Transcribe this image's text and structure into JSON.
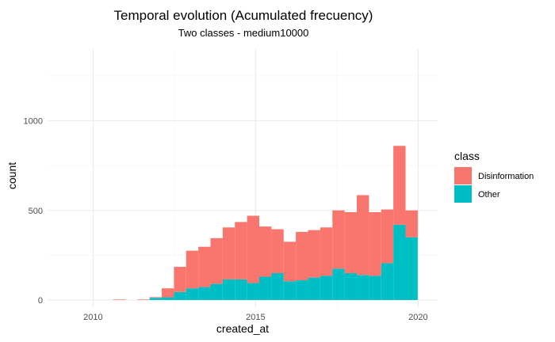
{
  "chart_data": {
    "type": "bar",
    "stacked": true,
    "title": "Temporal evolution (Acumulated frecuency)",
    "subtitle": "Two classes - medium10000",
    "xlabel": "created_at",
    "ylabel": "count",
    "xlim": [
      2008.6,
      2020.6
    ],
    "ylim": [
      -40,
      1400
    ],
    "x_ticks": [
      2010,
      2015,
      2020
    ],
    "x_tick_labels": [
      "2010",
      "2015",
      "2020"
    ],
    "y_ticks": [
      0,
      500,
      1000
    ],
    "y_tick_labels": [
      "0",
      "500",
      "1000"
    ],
    "grid": true,
    "legend_position": "right",
    "legend_title": "class",
    "bin_width": 0.375,
    "x": [
      2010.8,
      2011.55,
      2011.925,
      2012.3,
      2012.675,
      2013.05,
      2013.425,
      2013.8,
      2014.175,
      2014.55,
      2014.925,
      2015.3,
      2015.675,
      2016.05,
      2016.425,
      2016.8,
      2017.175,
      2017.55,
      2017.925,
      2018.3,
      2018.675,
      2019.05,
      2019.425,
      2019.8
    ],
    "series": [
      {
        "name": "Disinformation",
        "color": "#F8766D",
        "values": [
          3,
          3,
          4,
          50,
          140,
          210,
          225,
          255,
          290,
          320,
          375,
          280,
          245,
          220,
          270,
          265,
          270,
          325,
          340,
          445,
          355,
          300,
          440,
          150
        ]
      },
      {
        "name": "Other",
        "color": "#00BFC4",
        "values": [
          0,
          0,
          12,
          15,
          45,
          65,
          72,
          90,
          115,
          115,
          95,
          130,
          150,
          105,
          110,
          125,
          135,
          175,
          150,
          140,
          135,
          205,
          420,
          350
        ]
      }
    ]
  }
}
